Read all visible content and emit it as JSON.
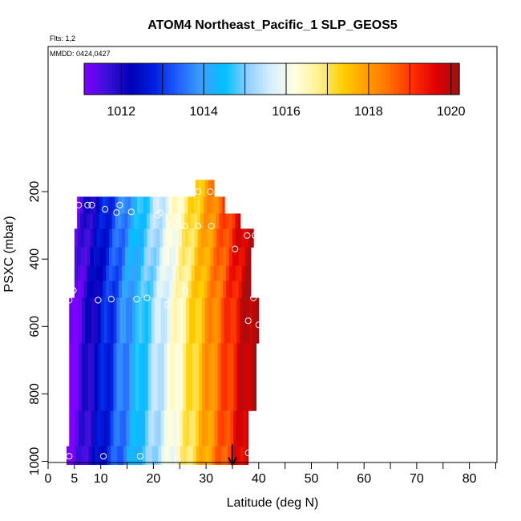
{
  "chart_data": {
    "type": "heatmap",
    "title": "ATOM4 Northeast_Pacific_1 SLP_GEOS5",
    "flts_label": "Flts: 1,2",
    "mmdd_label": "MMDD: 0424,0427",
    "xlabel": "Latitude (deg N)",
    "ylabel": "PSXC (mbar)",
    "xlim": [
      0,
      85
    ],
    "ylim": [
      1010,
      0
    ],
    "x_ticks": [
      0,
      5,
      10,
      20,
      30,
      40,
      50,
      60,
      70,
      80
    ],
    "x_tick_labels": [
      "0",
      "5",
      "10",
      "20",
      "30",
      "40",
      "50",
      "60",
      "70",
      "80"
    ],
    "y_ticks": [
      200,
      400,
      600,
      800,
      1000
    ],
    "y_tick_labels": [
      "200",
      "400",
      "600",
      "800",
      "1000"
    ],
    "colorbar": {
      "min": 1011.1,
      "max": 1020.2,
      "ticks": [
        1012,
        1014,
        1016,
        1018,
        1020
      ],
      "tick_labels": [
        "1012",
        "1014",
        "1016",
        "1018",
        "1020"
      ],
      "colors": [
        "#7f00ff",
        "#3a10d8",
        "#0000b8",
        "#0020e0",
        "#2060ff",
        "#3aa0ff",
        "#00c0ff",
        "#90d0ff",
        "#d8f0ff",
        "#ffffe0",
        "#fff090",
        "#ffd000",
        "#ffa000",
        "#ff7000",
        "#ff3000",
        "#e00000",
        "#a01010"
      ]
    },
    "value_model": "SLP ~ 1011.2 + (1020.0 - 1011.2) * ((lat - 5) / 33), clipped",
    "swaths": [
      {
        "p_top": 165,
        "p_bottom": 215,
        "lat_min": 28.0,
        "lat_max": 31.5
      },
      {
        "p_top": 215,
        "p_bottom": 265,
        "lat_min": 5.5,
        "lat_max": 33.5
      },
      {
        "p_top": 265,
        "p_bottom": 310,
        "lat_min": 5.5,
        "lat_max": 36.5
      },
      {
        "p_top": 310,
        "p_bottom": 365,
        "lat_min": 5.0,
        "lat_max": 39.0
      },
      {
        "p_top": 365,
        "p_bottom": 420,
        "lat_min": 5.0,
        "lat_max": 38.5
      },
      {
        "p_top": 420,
        "p_bottom": 465,
        "lat_min": 5.0,
        "lat_max": 38.5
      },
      {
        "p_top": 465,
        "p_bottom": 515,
        "lat_min": 5.0,
        "lat_max": 38.5
      },
      {
        "p_top": 515,
        "p_bottom": 650,
        "lat_min": 4.0,
        "lat_max": 40.0
      },
      {
        "p_top": 650,
        "p_bottom": 850,
        "lat_min": 4.0,
        "lat_max": 39.5
      },
      {
        "p_top": 850,
        "p_bottom": 955,
        "lat_min": 4.0,
        "lat_max": 38.0
      },
      {
        "p_top": 955,
        "p_bottom": 1010,
        "lat_min": 3.5,
        "lat_max": 38.0
      }
    ],
    "markers": [
      {
        "lat": 5.8,
        "p": 240
      },
      {
        "lat": 7.5,
        "p": 240
      },
      {
        "lat": 8.3,
        "p": 240
      },
      {
        "lat": 10.8,
        "p": 252
      },
      {
        "lat": 13.6,
        "p": 240
      },
      {
        "lat": 15.8,
        "p": 260
      },
      {
        "lat": 13.0,
        "p": 262
      },
      {
        "lat": 20.8,
        "p": 270
      },
      {
        "lat": 21.3,
        "p": 263
      },
      {
        "lat": 28.5,
        "p": 200
      },
      {
        "lat": 30.8,
        "p": 200
      },
      {
        "lat": 23.3,
        "p": 302
      },
      {
        "lat": 26.0,
        "p": 302
      },
      {
        "lat": 28.5,
        "p": 302
      },
      {
        "lat": 31.0,
        "p": 302
      },
      {
        "lat": 37.8,
        "p": 330
      },
      {
        "lat": 39.3,
        "p": 330
      },
      {
        "lat": 35.5,
        "p": 370
      },
      {
        "lat": 4.8,
        "p": 493
      },
      {
        "lat": 26.0,
        "p": 493
      },
      {
        "lat": 4.0,
        "p": 522
      },
      {
        "lat": 9.5,
        "p": 522
      },
      {
        "lat": 12.0,
        "p": 519
      },
      {
        "lat": 16.8,
        "p": 519
      },
      {
        "lat": 18.8,
        "p": 515
      },
      {
        "lat": 22.7,
        "p": 535
      },
      {
        "lat": 39.0,
        "p": 515
      },
      {
        "lat": 38.0,
        "p": 583
      },
      {
        "lat": 40.0,
        "p": 595
      },
      {
        "lat": 4.0,
        "p": 985
      },
      {
        "lat": 10.5,
        "p": 985
      },
      {
        "lat": 17.5,
        "p": 985
      },
      {
        "lat": 24.5,
        "p": 995
      },
      {
        "lat": 38.0,
        "p": 975
      }
    ],
    "arrow": {
      "lat": 35.0,
      "p_from": 950,
      "p_to": 1010
    }
  }
}
